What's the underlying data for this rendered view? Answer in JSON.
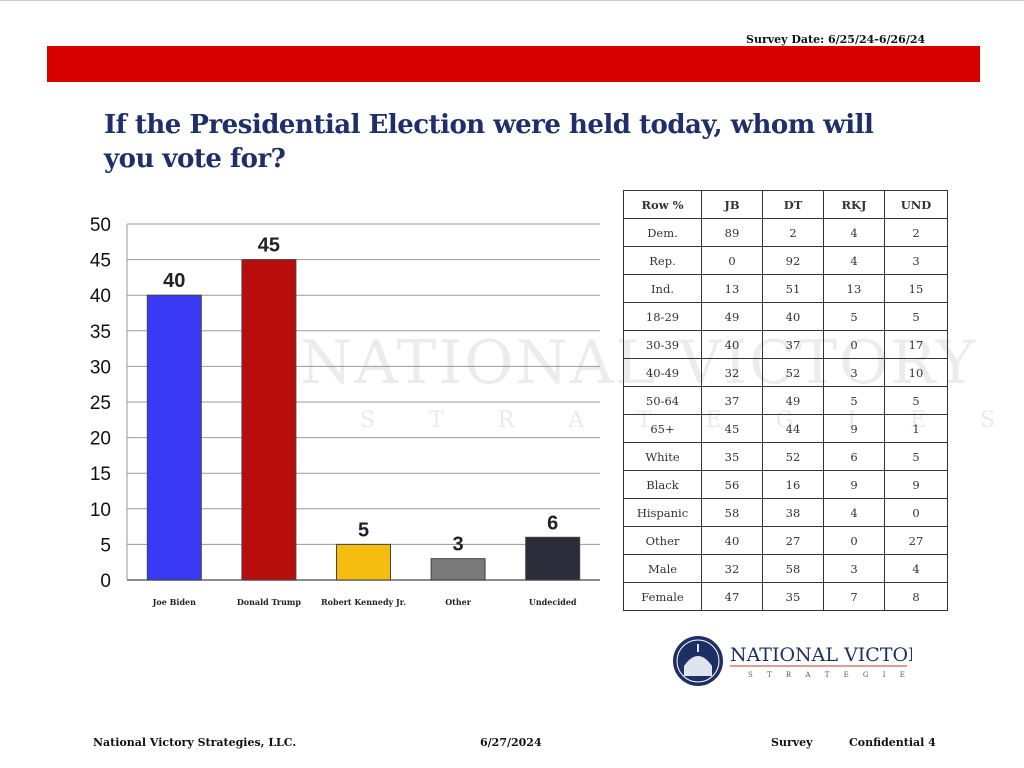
{
  "header": {
    "survey_date": "Survey Date: 6/25/24-6/26/24",
    "title": "If the Presidential Election were held today, whom will you vote for?"
  },
  "colors": {
    "brand_red": "#d90000",
    "title_blue": "#1f2f6b"
  },
  "chart_data": {
    "type": "bar",
    "categories": [
      "Joe Biden",
      "Donald Trump",
      "Robert Kennedy Jr.",
      "Other",
      "Undecided"
    ],
    "values": [
      40,
      45,
      5,
      3,
      6
    ],
    "colors": [
      "#3a3af5",
      "#b80d0d",
      "#f5bd10",
      "#7a7a7a",
      "#2b2b3a"
    ],
    "yticks": [
      0,
      5,
      10,
      15,
      20,
      25,
      30,
      35,
      40,
      45,
      50
    ],
    "ylim": [
      0,
      50
    ],
    "grid": true
  },
  "table": {
    "headers": [
      "Row %",
      "JB",
      "DT",
      "RKJ",
      "UND"
    ],
    "rows": [
      [
        "Dem.",
        "89",
        "2",
        "4",
        "2"
      ],
      [
        "Rep.",
        "0",
        "92",
        "4",
        "3"
      ],
      [
        "Ind.",
        "13",
        "51",
        "13",
        "15"
      ],
      [
        "18-29",
        "49",
        "40",
        "5",
        "5"
      ],
      [
        "30-39",
        "40",
        "37",
        "0",
        "17"
      ],
      [
        "40-49",
        "32",
        "52",
        "3",
        "10"
      ],
      [
        "50-64",
        "37",
        "49",
        "5",
        "5"
      ],
      [
        "65+",
        "45",
        "44",
        "9",
        "1"
      ],
      [
        "White",
        "35",
        "52",
        "6",
        "5"
      ],
      [
        "Black",
        "56",
        "16",
        "9",
        "9"
      ],
      [
        "Hispanic",
        "58",
        "38",
        "4",
        "0"
      ],
      [
        "Other",
        "40",
        "27",
        "0",
        "27"
      ],
      [
        "Male",
        "32",
        "58",
        "3",
        "4"
      ],
      [
        "Female",
        "47",
        "35",
        "7",
        "8"
      ]
    ]
  },
  "watermark": {
    "line1": "NATIONAL VICTORY",
    "line2": "STRATEGIES"
  },
  "logo": {
    "line1": "NATIONAL VICTORY",
    "line2": "S T R A T E G I E S"
  },
  "footer": {
    "company": "National Victory Strategies, LLC.",
    "date": "6/27/2024",
    "survey": "Survey",
    "page": "Confidential 4"
  }
}
